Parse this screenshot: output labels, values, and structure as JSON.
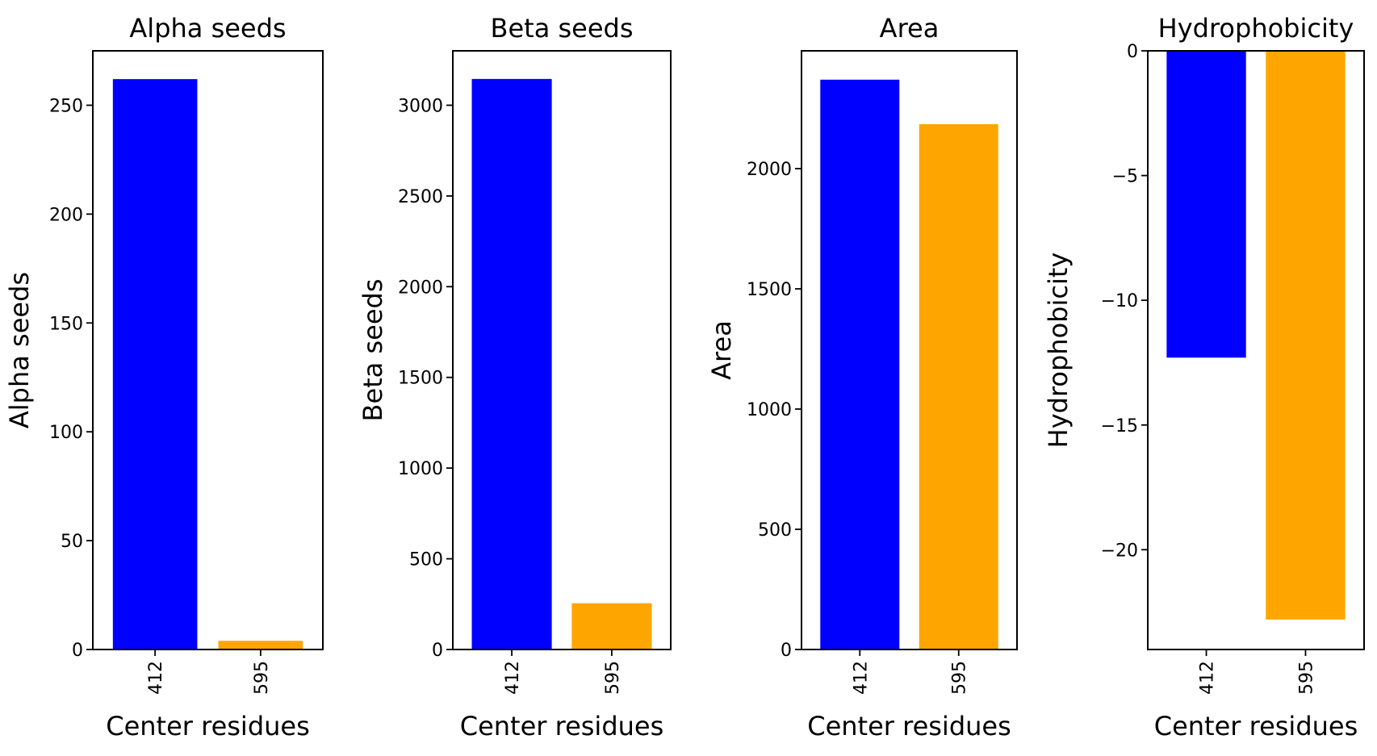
{
  "chart_data": [
    {
      "type": "bar",
      "title": "Alpha seeds",
      "xlabel": "Center residues",
      "ylabel": "Alpha seeds",
      "categories": [
        "412",
        "595"
      ],
      "values": [
        262,
        4
      ],
      "bar_colors": [
        "#0000ff",
        "#ffa500"
      ],
      "ylim": [
        0,
        275
      ],
      "yticks": [
        0,
        50,
        100,
        150,
        200,
        250
      ],
      "ytick_labels": [
        "0",
        "50",
        "100",
        "150",
        "200",
        "250"
      ],
      "xtick_rotation": 90,
      "grid": false
    },
    {
      "type": "bar",
      "title": "Beta seeds",
      "xlabel": "Center residues",
      "ylabel": "Beta seeds",
      "categories": [
        "412",
        "595"
      ],
      "values": [
        3145,
        255
      ],
      "bar_colors": [
        "#0000ff",
        "#ffa500"
      ],
      "ylim": [
        0,
        3300
      ],
      "yticks": [
        0,
        500,
        1000,
        1500,
        2000,
        2500,
        3000
      ],
      "ytick_labels": [
        "0",
        "500",
        "1000",
        "1500",
        "2000",
        "2500",
        "3000"
      ],
      "xtick_rotation": 90,
      "grid": false
    },
    {
      "type": "bar",
      "title": "Area",
      "xlabel": "Center residues",
      "ylabel": "Area",
      "categories": [
        "412",
        "595"
      ],
      "values": [
        2370,
        2185
      ],
      "bar_colors": [
        "#0000ff",
        "#ffa500"
      ],
      "ylim": [
        0,
        2490
      ],
      "yticks": [
        0,
        500,
        1000,
        1500,
        2000
      ],
      "ytick_labels": [
        "0",
        "500",
        "1000",
        "1500",
        "2000"
      ],
      "xtick_rotation": 90,
      "grid": false
    },
    {
      "type": "bar",
      "title": "Hydrophobicity",
      "xlabel": "Center residues",
      "ylabel": "Hydrophobicity",
      "categories": [
        "412",
        "595"
      ],
      "values": [
        -12.3,
        -22.8
      ],
      "bar_colors": [
        "#0000ff",
        "#ffa500"
      ],
      "ylim": [
        -24,
        0
      ],
      "yticks": [
        0,
        -5,
        -10,
        -15,
        -20
      ],
      "ytick_labels": [
        "0",
        "−5",
        "−10",
        "−15",
        "−20"
      ],
      "xtick_rotation": 90,
      "grid": false
    }
  ]
}
